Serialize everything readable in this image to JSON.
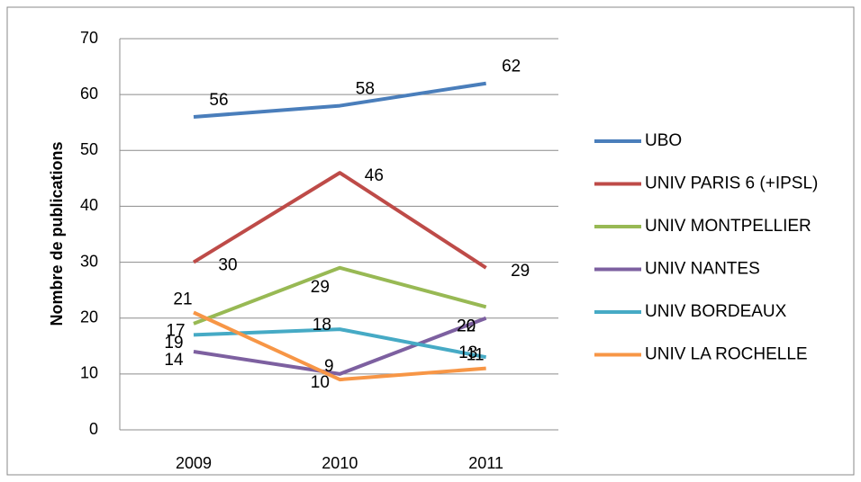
{
  "chart_data": {
    "type": "line",
    "y_label": "Nombre de publications",
    "categories": [
      "2009",
      "2010",
      "2011"
    ],
    "ylim": [
      0,
      70
    ],
    "yticks": [
      0,
      10,
      20,
      30,
      40,
      50,
      60,
      70
    ],
    "grid": true,
    "legend": "right",
    "series": [
      {
        "name": "UBO",
        "color": "#4a7ebb",
        "values": [
          56,
          58,
          62
        ]
      },
      {
        "name": "UNIV PARIS 6 (+IPSL)",
        "color": "#be4b48",
        "values": [
          30,
          46,
          29
        ]
      },
      {
        "name": "UNIV MONTPELLIER",
        "color": "#98b954",
        "values": [
          19,
          29,
          22
        ]
      },
      {
        "name": "UNIV NANTES",
        "color": "#7d60a0",
        "values": [
          14,
          10,
          20
        ]
      },
      {
        "name": "UNIV BORDEAUX",
        "color": "#46aac5",
        "values": [
          17,
          18,
          13
        ]
      },
      {
        "name": "UNIV LA ROCHELLE",
        "color": "#f79646",
        "values": [
          21,
          9,
          11
        ]
      }
    ]
  }
}
